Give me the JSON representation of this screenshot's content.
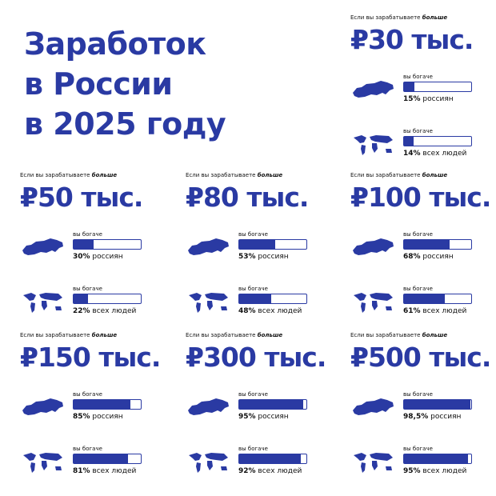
{
  "title_lines": [
    "Заработок",
    "в России",
    "в 2025 году"
  ],
  "xlim": [
    0,
    100
  ],
  "cards": [
    {
      "intro": "Если вы зарабатываете",
      "emph": "больше",
      "amount": "₽30 тыс.",
      "rows": [
        {
          "caption": "вы богаче",
          "value": 15,
          "value_label": "15%",
          "label": "россиян"
        },
        {
          "caption": "вы богаче",
          "value": 14,
          "value_label": "14%",
          "label": "всех людей"
        }
      ]
    },
    {
      "intro": "Если вы зарабатываете",
      "emph": "больше",
      "amount": "₽50 тыс.",
      "rows": [
        {
          "caption": "вы богаче",
          "value": 30,
          "value_label": "30%",
          "label": "россиян"
        },
        {
          "caption": "вы богаче",
          "value": 22,
          "value_label": "22%",
          "label": "всех людей"
        }
      ]
    },
    {
      "intro": "Если вы зарабатываете",
      "emph": "больше",
      "amount": "₽80 тыс.",
      "rows": [
        {
          "caption": "вы богаче",
          "value": 53,
          "value_label": "53%",
          "label": "россиян"
        },
        {
          "caption": "вы богаче",
          "value": 48,
          "value_label": "48%",
          "label": "всех людей"
        }
      ]
    },
    {
      "intro": "Если вы зарабатываете",
      "emph": "больше",
      "amount": "₽100 тыс.",
      "rows": [
        {
          "caption": "вы богаче",
          "value": 68,
          "value_label": "68%",
          "label": "россиян"
        },
        {
          "caption": "вы богаче",
          "value": 61,
          "value_label": "61%",
          "label": "всех людей"
        }
      ]
    },
    {
      "intro": "Если вы зарабатываете",
      "emph": "больше",
      "amount": "₽150 тыс.",
      "rows": [
        {
          "caption": "вы богаче",
          "value": 85,
          "value_label": "85%",
          "label": "россиян"
        },
        {
          "caption": "вы богаче",
          "value": 81,
          "value_label": "81%",
          "label": "всех людей"
        }
      ]
    },
    {
      "intro": "Если вы зарабатываете",
      "emph": "больше",
      "amount": "₽300 тыс.",
      "rows": [
        {
          "caption": "вы богаче",
          "value": 95,
          "value_label": "95%",
          "label": "россиян"
        },
        {
          "caption": "вы богаче",
          "value": 92,
          "value_label": "92%",
          "label": "всех людей"
        }
      ]
    },
    {
      "intro": "Если вы зарабатываете",
      "emph": "больше",
      "amount": "₽500 тыс.",
      "rows": [
        {
          "caption": "вы богаче",
          "value": 98.5,
          "value_label": "98,5%",
          "label": "россиян"
        },
        {
          "caption": "вы богаче",
          "value": 95,
          "value_label": "95%",
          "label": "всех людей"
        }
      ]
    }
  ]
}
